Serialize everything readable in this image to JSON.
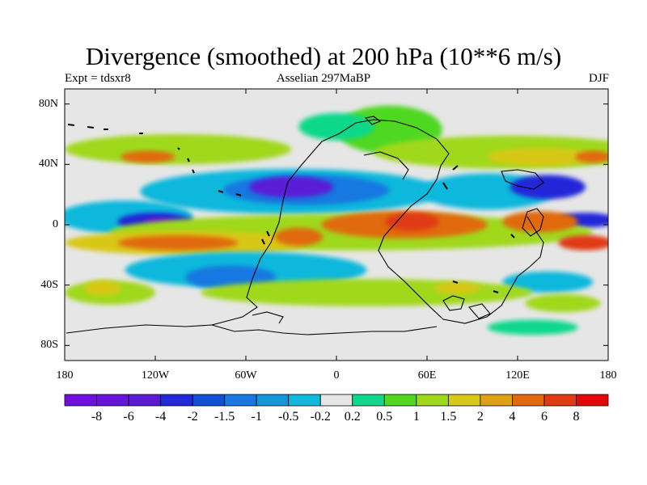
{
  "title": "Divergence (smoothed) at 200 hPa (10**6 m/s)",
  "subtitle_left": "Expt = tdsxr8",
  "subtitle_center": "Asselian 297MaBP",
  "subtitle_right": "DJF",
  "map": {
    "lon_range": [
      -180,
      180
    ],
    "lat_range": [
      -90,
      90
    ],
    "x_ticks": [
      {
        "lon": -180,
        "label": "180"
      },
      {
        "lon": -120,
        "label": "120W"
      },
      {
        "lon": -60,
        "label": "60W"
      },
      {
        "lon": 0,
        "label": "0"
      },
      {
        "lon": 60,
        "label": "60E"
      },
      {
        "lon": 120,
        "label": "120E"
      },
      {
        "lon": 180,
        "label": "180"
      }
    ],
    "y_ticks": [
      {
        "lat": 80,
        "label": "80N"
      },
      {
        "lat": 40,
        "label": "40N"
      },
      {
        "lat": 0,
        "label": "0"
      },
      {
        "lat": -40,
        "label": "40S"
      },
      {
        "lat": -80,
        "label": "80S"
      }
    ],
    "background_color": "#e6e6e6",
    "regions": [
      {
        "name": "band-north-50",
        "lon": -105,
        "lat": 50,
        "rlon": 75,
        "rlat": 10,
        "cls": 11
      },
      {
        "name": "band-north-50-inner",
        "lon": -125,
        "lat": 45,
        "rlon": 18,
        "rlat": 4,
        "cls": 14
      },
      {
        "name": "arctic-conv",
        "lon": 35,
        "lat": 63,
        "rlon": 35,
        "rlat": 16,
        "cls": 10
      },
      {
        "name": "arctic-conv-2",
        "lon": 0,
        "lat": 65,
        "rlon": 25,
        "rlat": 9,
        "cls": 9
      },
      {
        "name": "north-pacific-div",
        "lon": 115,
        "lat": 48,
        "rlon": 90,
        "rlat": 11,
        "cls": 11
      },
      {
        "name": "north-pacific-div-2",
        "lon": 135,
        "lat": 45,
        "rlon": 35,
        "rlat": 6,
        "cls": 12
      },
      {
        "name": "north-pacific-div-3",
        "lon": 170,
        "lat": 45,
        "rlon": 12,
        "rlat": 4,
        "cls": 14
      },
      {
        "name": "arctic-blue",
        "lon": 160,
        "lat": 70,
        "rlon": 20,
        "rlat": 7,
        "cls": 8
      },
      {
        "name": "north-conv-belt",
        "lon": -30,
        "lat": 22,
        "rlon": 100,
        "rlat": 15,
        "cls": 7
      },
      {
        "name": "north-conv-belt-2",
        "lon": -20,
        "lat": 23,
        "rlon": 55,
        "rlat": 10,
        "cls": 5
      },
      {
        "name": "north-conv-belt-3",
        "lon": -30,
        "lat": 25,
        "rlon": 28,
        "rlat": 7,
        "cls": 2
      },
      {
        "name": "asia-conv",
        "lon": 100,
        "lat": 22,
        "rlon": 45,
        "rlat": 12,
        "cls": 7
      },
      {
        "name": "asia-conv-2",
        "lon": 140,
        "lat": 25,
        "rlon": 25,
        "rlat": 8,
        "cls": 3
      },
      {
        "name": "pacific-conv",
        "lon": -140,
        "lat": 5,
        "rlon": 45,
        "rlat": 11,
        "cls": 7
      },
      {
        "name": "pacific-conv-2",
        "lon": -120,
        "lat": 2,
        "rlon": 25,
        "rlat": 6,
        "cls": 3
      },
      {
        "name": "pacific-conv-3",
        "lon": -118,
        "lat": 2,
        "rlon": 10,
        "rlat": 3,
        "cls": 1
      },
      {
        "name": "east-pacific-conv",
        "lon": 165,
        "lat": 3,
        "rlon": 20,
        "rlat": 5,
        "cls": 3
      },
      {
        "name": "tropical-div-belt",
        "lon": 10,
        "lat": -5,
        "rlon": 160,
        "rlat": 12,
        "cls": 11
      },
      {
        "name": "tropical-div-belt-2",
        "lon": -100,
        "lat": -12,
        "rlon": 80,
        "rlat": 8,
        "cls": 12
      },
      {
        "name": "tropical-div-belt-3",
        "lon": -105,
        "lat": -12,
        "rlon": 40,
        "rlat": 5,
        "cls": 14
      },
      {
        "name": "tropical-div-4",
        "lon": 45,
        "lat": 0,
        "rlon": 55,
        "rlat": 9,
        "cls": 14
      },
      {
        "name": "tropical-div-5",
        "lon": 50,
        "lat": 2,
        "rlon": 18,
        "rlat": 6,
        "cls": 15
      },
      {
        "name": "tropical-div-6",
        "lon": -25,
        "lat": -8,
        "rlon": 16,
        "rlat": 6,
        "cls": 14
      },
      {
        "name": "tropical-div-7",
        "lon": 135,
        "lat": 2,
        "rlon": 25,
        "rlat": 7,
        "cls": 14
      },
      {
        "name": "tropical-div-8",
        "lon": 165,
        "lat": -12,
        "rlon": 18,
        "rlat": 5,
        "cls": 15
      },
      {
        "name": "south-conv-belt",
        "lon": -60,
        "lat": -30,
        "rlon": 80,
        "rlat": 12,
        "cls": 7
      },
      {
        "name": "south-conv-belt-2",
        "lon": -70,
        "lat": -35,
        "rlon": 30,
        "rlat": 8,
        "cls": 5
      },
      {
        "name": "south-conv-belt-3",
        "lon": 140,
        "lat": -38,
        "rlon": 30,
        "rlat": 7,
        "cls": 7
      },
      {
        "name": "south-div-belt",
        "lon": 20,
        "lat": -45,
        "rlon": 110,
        "rlat": 9,
        "cls": 11
      },
      {
        "name": "south-div-belt-2",
        "lon": -150,
        "lat": -45,
        "rlon": 30,
        "rlat": 8,
        "cls": 11
      },
      {
        "name": "south-div-belt-3",
        "lon": -155,
        "lat": -42,
        "rlon": 12,
        "rlat": 5,
        "cls": 12
      },
      {
        "name": "south-div-belt-4",
        "lon": 80,
        "lat": -42,
        "rlon": 15,
        "rlat": 4,
        "cls": 12
      },
      {
        "name": "south-div-5",
        "lon": 150,
        "lat": -52,
        "rlon": 25,
        "rlat": 6,
        "cls": 11
      },
      {
        "name": "antarctic-conv",
        "lon": -100,
        "lat": -75,
        "rlon": 70,
        "rlat": 8,
        "cls": 8
      },
      {
        "name": "antarctic-conv-2",
        "lon": -5,
        "lat": -70,
        "rlon": 15,
        "rlat": 5,
        "cls": 8
      },
      {
        "name": "antarctic-conv-3",
        "lon": 130,
        "lat": -68,
        "rlon": 30,
        "rlat": 5,
        "cls": 9
      }
    ]
  },
  "colorbar": {
    "colors": [
      "#7010e0",
      "#6614d8",
      "#5a1ad6",
      "#2428d8",
      "#1050d8",
      "#1878e0",
      "#1496d8",
      "#10b8dc",
      "#e6e6e6",
      "#10d88a",
      "#50d820",
      "#a0d81a",
      "#d8c818",
      "#e0a014",
      "#e06a10",
      "#e03a14",
      "#e00808"
    ],
    "labels": [
      "-8",
      "-6",
      "-4",
      "-2",
      "-1.5",
      "-1",
      "-0.5",
      "-0.2",
      "0.2",
      "0.5",
      "1",
      "1.5",
      "2",
      "4",
      "6",
      "8"
    ]
  }
}
